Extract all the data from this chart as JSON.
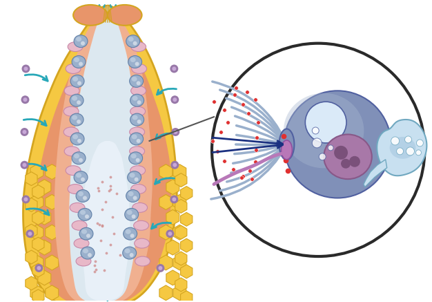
{
  "bg_color": "#ffffff",
  "sponge": {
    "outer_color": "#f5c842",
    "outer_stroke": "#d4a520",
    "inner_wall_color": "#e8956a",
    "inner_wall_light": "#f0b090",
    "spongocoel_color": "#dce8f0",
    "cell_color": "#9ab0cc",
    "cell_stroke": "#6080a8",
    "cell_highlight": "#c8d8e8",
    "pink_cell_color": "#e8b8c8",
    "pink_cell_stroke": "#c888a8",
    "arrow_color": "#28a8b8",
    "outer_dot_color": "#9878a8",
    "outer_dot_inner": "#c8a8d8",
    "hex_stroke": "#e0b830",
    "top_fiber_color": "#d4a020",
    "spongocoel_dots": "#d09090"
  },
  "circle_magnified": {
    "bg": "#ffffff",
    "border": "#2a2a2a",
    "cell_body_color": "#8090b8",
    "cell_body_dark": "#6878a0",
    "cell_light": "#a8b8d0",
    "cell_outline": "#5060a0",
    "flagella_light_color": "#9ab0cc",
    "flagella_dark_color": "#1a3080",
    "collar_color": "#8090b8",
    "pink_band_color": "#b878b8",
    "red_dots_color": "#e03030",
    "amoeba_color": "#c8e0f0",
    "amoeba_inner": "#a8c8e0",
    "amoeba_stroke": "#70a8c0",
    "vacuole_color": "#d8eaf8",
    "nucleus_color": "#a878a8",
    "nucleus_stroke": "#885888",
    "nucleolus_color": "#7a507a",
    "white_vesicle": "#ffffff",
    "arrow_color": "#1a3080",
    "big_vacuole_color": "#b8d8f0"
  },
  "line_color": "#555555"
}
